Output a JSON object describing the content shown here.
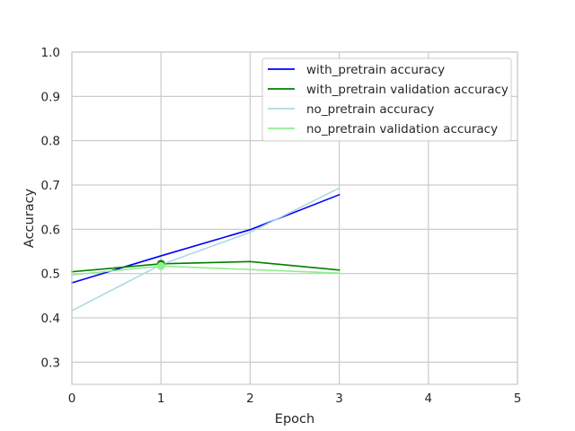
{
  "chart_data": {
    "type": "line",
    "title": "",
    "xlabel": "Epoch",
    "ylabel": "Accuracy",
    "xlim": [
      0,
      5
    ],
    "ylim": [
      0.25,
      1.0
    ],
    "x_ticks": [
      0,
      1,
      2,
      3,
      4,
      5
    ],
    "y_ticks": [
      0.3,
      0.4,
      0.5,
      0.6,
      0.7,
      0.8,
      0.9,
      1.0
    ],
    "x_tick_labels": [
      "0",
      "1",
      "2",
      "3",
      "4",
      "5"
    ],
    "y_tick_labels": [
      "0.3",
      "0.4",
      "0.5",
      "0.6",
      "0.7",
      "0.8",
      "0.9",
      "1.0"
    ],
    "grid": true,
    "legend_position": "top-right",
    "x": [
      0,
      1,
      2,
      3
    ],
    "series": [
      {
        "name": "with_pretrain accuracy",
        "color": "#0000ff",
        "values": [
          0.479,
          0.54,
          0.599,
          0.678
        ]
      },
      {
        "name": "with_pretrain validation accuracy",
        "color": "#008000",
        "values": [
          0.504,
          0.522,
          0.527,
          0.508
        ]
      },
      {
        "name": "no_pretrain accuracy",
        "color": "#add8e6",
        "values": [
          0.416,
          0.52,
          0.593,
          0.693
        ]
      },
      {
        "name": "no_pretrain validation accuracy",
        "color": "#90ee90",
        "values": [
          0.497,
          0.517,
          0.509,
          0.501
        ]
      }
    ],
    "markers": [
      {
        "series": "with_pretrain validation accuracy",
        "x": 1,
        "y": 0.522,
        "color": "#008000"
      },
      {
        "series": "no_pretrain validation accuracy",
        "x": 1,
        "y": 0.517,
        "color": "#90ee90"
      }
    ]
  }
}
